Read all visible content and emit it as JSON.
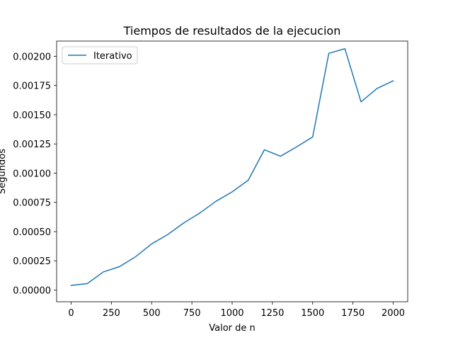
{
  "chart_data": {
    "type": "line",
    "title": "Tiempos de resultados de la ejecucion",
    "xlabel": "Valor de n",
    "ylabel": "Segundos",
    "xlim": [
      -90,
      2090
    ],
    "ylim": [
      -0.0001,
      0.00213
    ],
    "xticks": [
      0,
      250,
      500,
      750,
      1000,
      1250,
      1500,
      1750,
      2000
    ],
    "xtick_labels": [
      "0",
      "250",
      "500",
      "750",
      "1000",
      "1250",
      "1500",
      "1750",
      "2000"
    ],
    "yticks": [
      0.0,
      0.00025,
      0.0005,
      0.00075,
      0.001,
      0.00125,
      0.0015,
      0.00175,
      0.002
    ],
    "ytick_labels": [
      "0.00000",
      "0.00025",
      "0.00050",
      "0.00075",
      "0.00100",
      "0.00125",
      "0.00150",
      "0.00175",
      "0.00200"
    ],
    "grid": false,
    "legend_position": "upper-left",
    "series": [
      {
        "name": "Iterativo",
        "color": "#1f77b4",
        "x": [
          0,
          100,
          200,
          300,
          400,
          500,
          600,
          700,
          800,
          900,
          1000,
          1100,
          1200,
          1300,
          1400,
          1500,
          1600,
          1700,
          1800,
          1900,
          2000
        ],
        "y": [
          4e-05,
          5.5e-05,
          0.000155,
          0.0002,
          0.000285,
          0.000395,
          0.000475,
          0.000575,
          0.00066,
          0.00076,
          0.00084,
          0.00094,
          0.0012,
          0.001145,
          0.001225,
          0.00131,
          0.002025,
          0.002065,
          0.00161,
          0.001725,
          0.00179
        ]
      }
    ]
  }
}
